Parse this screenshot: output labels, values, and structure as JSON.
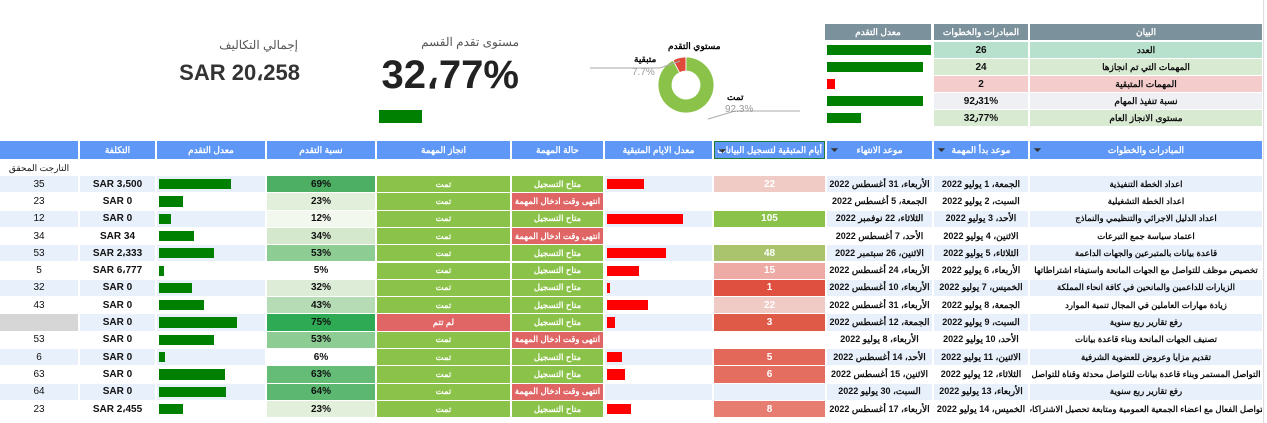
{
  "summary": {
    "headers": [
      "البيان",
      "المبادرات والخطوات",
      "معدل التقدم"
    ],
    "rows": [
      {
        "label": "العدد",
        "value": "26",
        "fill": 1.0,
        "bar_color": "#008000",
        "bg": "#b7e1cd"
      },
      {
        "label": "المهمات التي تم انجازها",
        "value": "24",
        "fill": 0.92,
        "bar_color": "#008000",
        "bg": "#d9ead3"
      },
      {
        "label": "المهمات المتبقية",
        "value": "2",
        "fill": 0.08,
        "bar_color": "#ff0000",
        "bg": "#f4cccc"
      },
      {
        "label": "نسبة تنفيذ المهام",
        "value": "92٫31%",
        "fill": 0.92,
        "bar_color": "#008000",
        "bg": "#eef0f3"
      },
      {
        "label": "مستوى الانجاز العام",
        "value": "32٫77%",
        "fill": 0.33,
        "bar_color": "#008000",
        "bg": "#d9ead3"
      }
    ]
  },
  "donut": {
    "title": "مستوي التقدم",
    "slices": [
      {
        "label": "تمت",
        "value": "92.3%",
        "pct": 92.3,
        "color": "#8bc34a"
      },
      {
        "label": "متبقية",
        "value": "7.7%",
        "pct": 7.7,
        "color": "#e04a3a"
      }
    ]
  },
  "kpi_progress": {
    "label": "مستوى تقدم القسم",
    "value": "32،77%",
    "fill": 0.3277
  },
  "kpi_cost": {
    "label": "إجمالي التكاليف",
    "value": "SAR 20،258"
  },
  "table": {
    "headers": [
      "المبادرات والخطوات",
      "موعد بدأ المهمة",
      "موعد الانتهاء",
      "أيام المتبقية لتسجيل البيانات",
      "معدل الايام المتبقية",
      "حالة المهمة",
      "انجاز المهمة",
      "نسبة التقدم",
      "معدل التقدم",
      "التكلفة",
      ""
    ],
    "sub_label": "التارجت المحقق",
    "colors": {
      "header": "#5e97f6",
      "available": "#8bc34a",
      "expired": "#e06666",
      "done": "#8bc34a",
      "not_done": "#e06666",
      "progress_bar": "#008000",
      "remaining_bar": "#ff0000"
    },
    "rows": [
      {
        "name": "اعداد الخطة التنفيذية",
        "start": "الجمعة، 1 يوليو 2022",
        "end": "الأربعاء، 31 أغسطس 2022",
        "days": "22",
        "days_bg": "#f0cbc6",
        "rate": 0.35,
        "status": "متاح التسجيل",
        "done": "تمت",
        "pct": "69%",
        "pct_val": 69,
        "pct_bg": "#4caf63",
        "cost": "SAR 3،500",
        "target": "35"
      },
      {
        "name": "اعداد الخطة التشغيلية",
        "start": "السبت، 2 يوليو 2022",
        "end": "الجمعة، 5 أغسطس 2022",
        "days": "",
        "days_bg": "",
        "rate": 0,
        "status": "انتهى وقت ادخال المهمة",
        "done": "تمت",
        "pct": "23%",
        "pct_val": 23,
        "pct_bg": "#e2efda",
        "cost": "SAR 0",
        "target": "23"
      },
      {
        "name": "اعداد الدليل الاجرائي والتنظيمي والنماذج",
        "start": "الأحد، 3 يوليو 2022",
        "end": "الثلاثاء، 22 نوفمبر 2022",
        "days": "105",
        "days_bg": "#8bc34a",
        "rate": 0.72,
        "status": "متاح التسجيل",
        "done": "تمت",
        "pct": "12%",
        "pct_val": 12,
        "pct_bg": "#f3f8ef",
        "cost": "SAR 0",
        "target": "12"
      },
      {
        "name": "اعتماد سياسة جمع التبرعات",
        "start": "الاثنين، 4 يوليو 2022",
        "end": "الأحد، 7 أغسطس 2022",
        "days": "",
        "days_bg": "",
        "rate": 0,
        "status": "انتهى وقت ادخال المهمة",
        "done": "تمت",
        "pct": "34%",
        "pct_val": 34,
        "pct_bg": "#d4e8cd",
        "cost": "SAR 34",
        "target": "34"
      },
      {
        "name": "قاعدة بيانات بالمتبرعين والجهات الداعمة",
        "start": "الثلاثاء، 5 يوليو 2022",
        "end": "الاثنين، 26 سبتمبر 2022",
        "days": "48",
        "days_bg": "#a9c46c",
        "rate": 0.56,
        "status": "متاح التسجيل",
        "done": "تمت",
        "pct": "53%",
        "pct_val": 53,
        "pct_bg": "#8dcc93",
        "cost": "SAR 2،333",
        "target": "53"
      },
      {
        "name": "تخصيص موظف للتواصل مع الجهات المانحة واستيفاء اشتراطاتها",
        "start": "الأربعاء، 6 يوليو 2022",
        "end": "الأربعاء، 24 أغسطس 2022",
        "days": "15",
        "days_bg": "#eeaaa4",
        "rate": 0.3,
        "status": "متاح التسجيل",
        "done": "تمت",
        "pct": "5%",
        "pct_val": 5,
        "pct_bg": "#ffffff",
        "cost": "SAR 6،777",
        "target": "5"
      },
      {
        "name": "الزيارات للداعمين والمانحين في كافة انحاء المملكة",
        "start": "الخميس، 7 يوليو 2022",
        "end": "الأربعاء، 10 أغسطس 2022",
        "days": "1",
        "days_bg": "#e05040",
        "rate": 0.03,
        "status": "متاح التسجيل",
        "done": "تمت",
        "pct": "32%",
        "pct_val": 32,
        "pct_bg": "#dcecd6",
        "cost": "SAR 0",
        "target": "32"
      },
      {
        "name": "زيادة مهارات العاملين في المجال تنمية الموارد",
        "start": "الجمعة، 8 يوليو 2022",
        "end": "الأربعاء، 31 أغسطس 2022",
        "days": "22",
        "days_bg": "#f0cbc6",
        "rate": 0.39,
        "status": "متاح التسجيل",
        "done": "تمت",
        "pct": "43%",
        "pct_val": 43,
        "pct_bg": "#b5dcb5",
        "cost": "SAR 0",
        "target": "43"
      },
      {
        "name": "رفع تقارير ربع سنوية",
        "start": "السبت، 9 يوليو 2022",
        "end": "الجمعة، 12 أغسطس 2022",
        "days": "3",
        "days_bg": "#e05a48",
        "rate": 0.08,
        "status": "متاح التسجيل",
        "done": "لم تتم",
        "pct": "75%",
        "pct_val": 75,
        "pct_bg": "#2eaa55",
        "cost": "SAR 0",
        "target": "",
        "target_bg": "#d6d6d6"
      },
      {
        "name": "تصنيف الجهات المانحة وبناء قاعدة بيانات",
        "start": "الأحد، 10 يوليو 2022",
        "end": "الأربعاء، 8 يوليو 2022",
        "days": "",
        "days_bg": "",
        "rate": 0,
        "status": "انتهى وقت ادخال المهمة",
        "done": "تمت",
        "pct": "53%",
        "pct_val": 53,
        "pct_bg": "#8dcc93",
        "cost": "SAR 0",
        "target": "53"
      },
      {
        "name": "تقديم مزايا وعروض للعضوية الشرفية",
        "start": "الاثنين، 11 يوليو 2022",
        "end": "الأحد، 14 أغسطس 2022",
        "days": "5",
        "days_bg": "#e3685a",
        "rate": 0.14,
        "status": "متاح التسجيل",
        "done": "تمت",
        "pct": "6%",
        "pct_val": 6,
        "pct_bg": "#ffffff",
        "cost": "SAR 0",
        "target": "6"
      },
      {
        "name": "التواصل المستمر وبناء قاعدة بيانات للتواصل محدثة وقناة للتواصل",
        "start": "الثلاثاء، 12 يوليو 2022",
        "end": "الاثنين، 15 أغسطس 2022",
        "days": "6",
        "days_bg": "#e46e60",
        "rate": 0.17,
        "status": "متاح التسجيل",
        "done": "تمت",
        "pct": "63%",
        "pct_val": 63,
        "pct_bg": "#64bc76",
        "cost": "SAR 0",
        "target": "63"
      },
      {
        "name": "رفع تقارير ربع سنوية",
        "start": "الأربعاء، 13 يوليو 2022",
        "end": "السبت، 30 يوليو 2022",
        "days": "",
        "days_bg": "",
        "rate": 0,
        "status": "انتهى وقت ادخال المهمة",
        "done": "تمت",
        "pct": "64%",
        "pct_val": 64,
        "pct_bg": "#5cb870",
        "cost": "SAR 0",
        "target": "64"
      },
      {
        "name": "التواصل الفعال مع اعضاء الجمعية العمومية ومتابعة تحصيل الاشتراكات",
        "start": "الخميس، 14 يوليو 2022",
        "end": "الأربعاء، 17 أغسطس 2022",
        "days": "8",
        "days_bg": "#e77c70",
        "rate": 0.23,
        "status": "متاح التسجيل",
        "done": "تمت",
        "pct": "23%",
        "pct_val": 23,
        "pct_bg": "#e2efda",
        "cost": "SAR 2،455",
        "target": "23"
      }
    ]
  }
}
